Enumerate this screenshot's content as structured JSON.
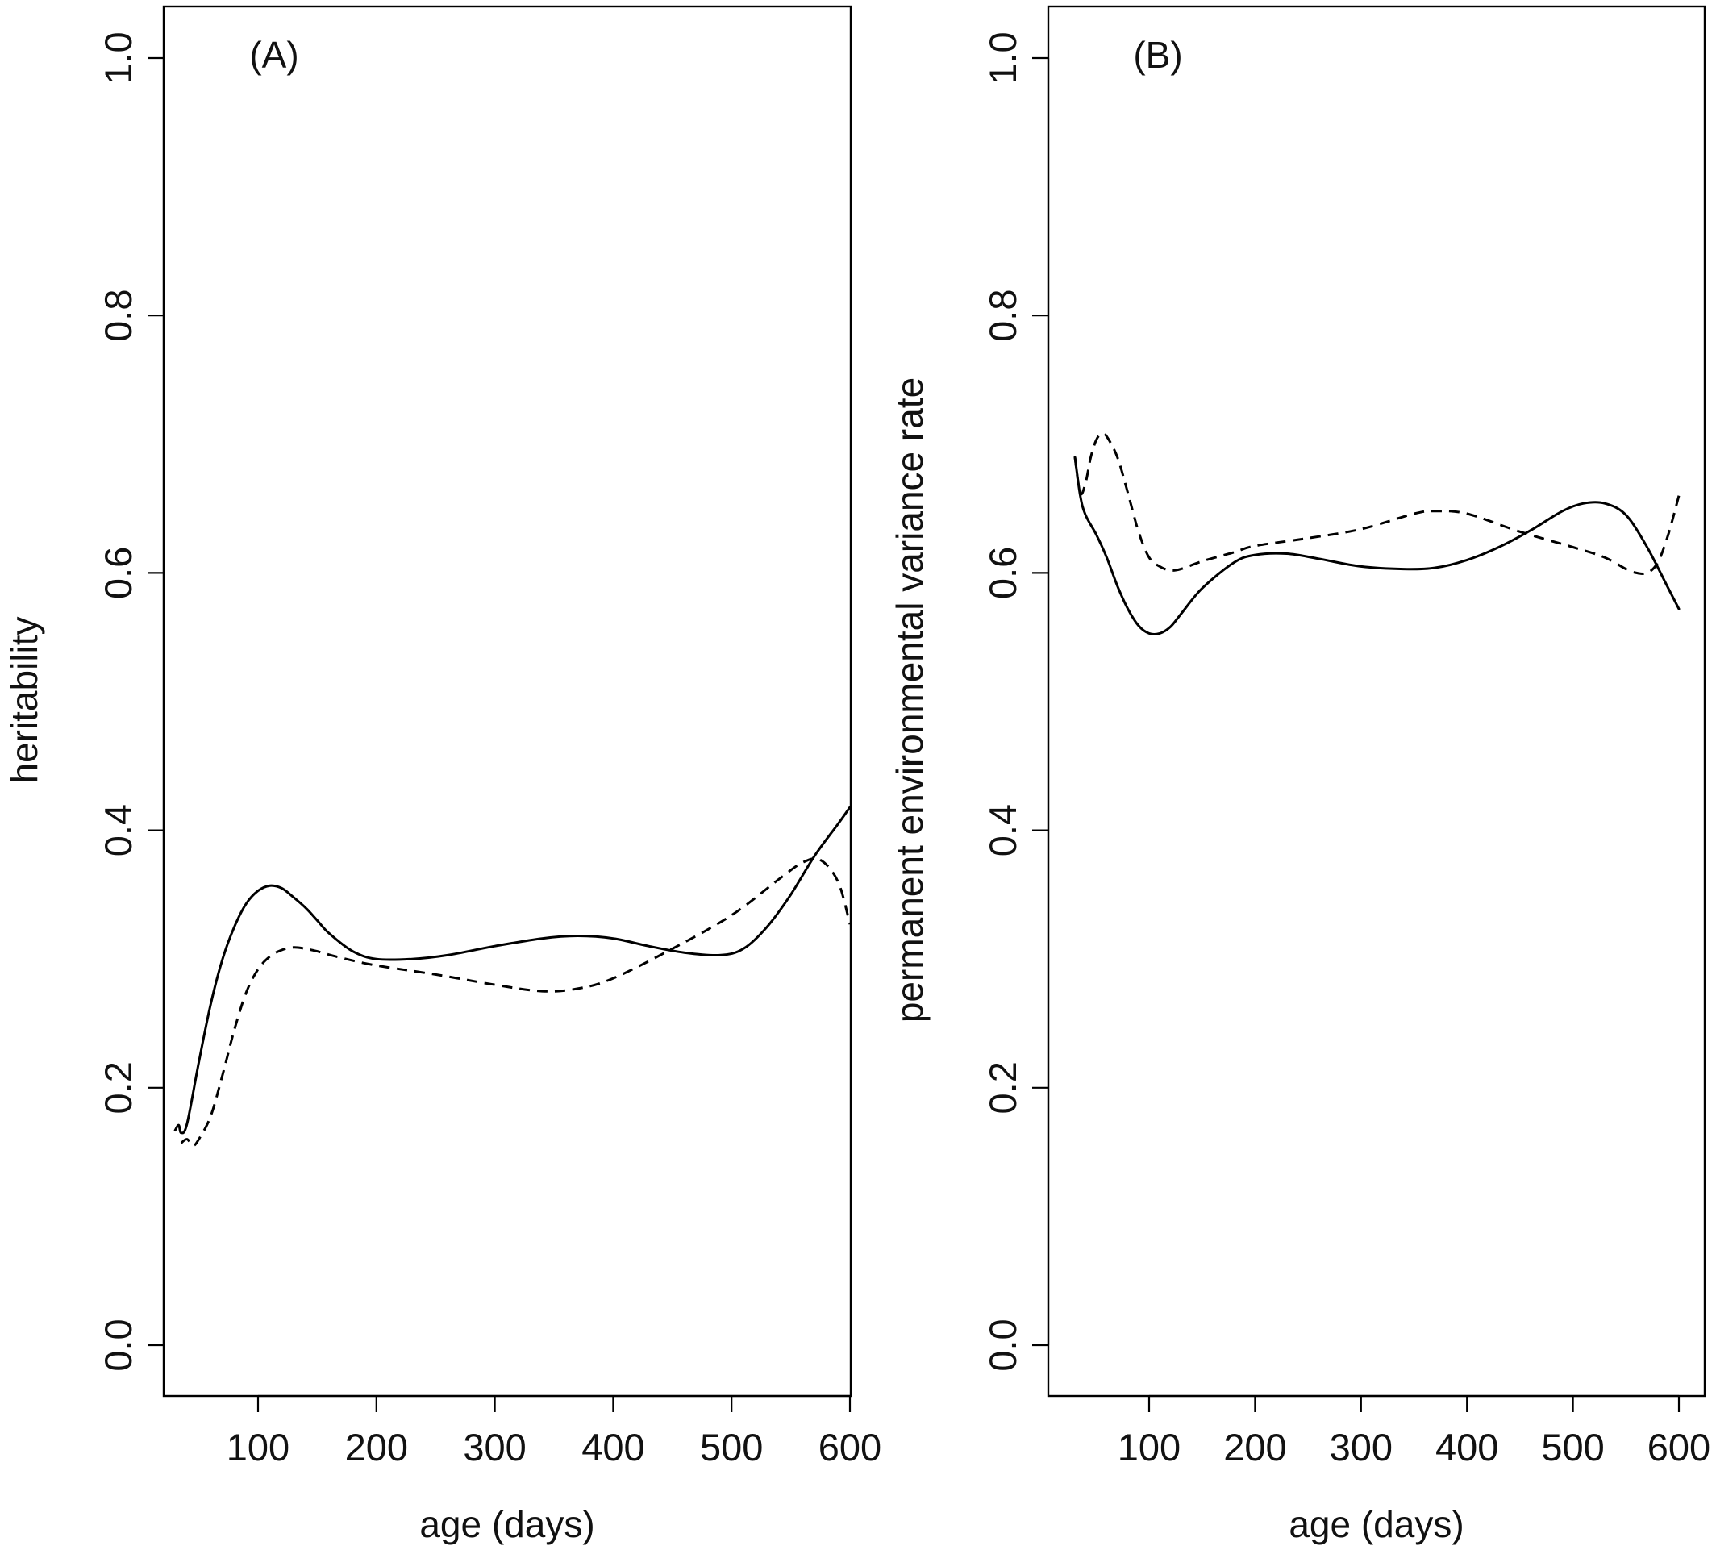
{
  "chart_data": [
    {
      "type": "line",
      "panel_label": "(A)",
      "xlabel": "age (days)",
      "ylabel": "heritability",
      "xlim": [
        30,
        600
      ],
      "ylim": [
        0.0,
        1.0
      ],
      "xticks": [
        100,
        200,
        300,
        400,
        500,
        600
      ],
      "yticks": [
        0.0,
        0.2,
        0.4,
        0.6,
        0.8,
        1.0
      ],
      "xtick_labels": [
        "100",
        "200",
        "300",
        "400",
        "500",
        "600"
      ],
      "ytick_labels": [
        "0.0",
        "0.2",
        "0.4",
        "0.6",
        "0.8",
        "1.0"
      ],
      "grid": false,
      "series": [
        {
          "style": "solid",
          "x": [
            30,
            33,
            35,
            40,
            50,
            60,
            70,
            80,
            90,
            100,
            110,
            120,
            130,
            140,
            150,
            160,
            180,
            200,
            230,
            260,
            300,
            340,
            370,
            400,
            430,
            460,
            490,
            510,
            530,
            550,
            570,
            590,
            600
          ],
          "y": [
            0.167,
            0.171,
            0.165,
            0.172,
            0.22,
            0.265,
            0.3,
            0.325,
            0.343,
            0.353,
            0.357,
            0.355,
            0.348,
            0.34,
            0.33,
            0.32,
            0.306,
            0.3,
            0.3,
            0.303,
            0.31,
            0.316,
            0.318,
            0.316,
            0.31,
            0.305,
            0.303,
            0.308,
            0.325,
            0.35,
            0.38,
            0.405,
            0.418
          ]
        },
        {
          "style": "dashed",
          "x": [
            35,
            40,
            45,
            50,
            60,
            70,
            80,
            90,
            100,
            110,
            120,
            130,
            140,
            150,
            170,
            200,
            250,
            300,
            340,
            370,
            400,
            450,
            500,
            540,
            560,
            575,
            590,
            600
          ],
          "y": [
            0.157,
            0.16,
            0.155,
            0.16,
            0.178,
            0.21,
            0.245,
            0.274,
            0.292,
            0.302,
            0.307,
            0.309,
            0.308,
            0.306,
            0.301,
            0.295,
            0.288,
            0.28,
            0.275,
            0.277,
            0.285,
            0.308,
            0.334,
            0.362,
            0.375,
            0.377,
            0.36,
            0.327
          ]
        }
      ]
    },
    {
      "type": "line",
      "panel_label": "(B)",
      "xlabel": "age (days)",
      "ylabel": "permanent environmental variance rate",
      "xlim": [
        30,
        600
      ],
      "ylim": [
        0.0,
        1.0
      ],
      "xticks": [
        100,
        200,
        300,
        400,
        500,
        600
      ],
      "yticks": [
        0.0,
        0.2,
        0.4,
        0.6,
        0.8,
        1.0
      ],
      "xtick_labels": [
        "100",
        "200",
        "300",
        "400",
        "500",
        "600"
      ],
      "ytick_labels": [
        "0.0",
        "0.2",
        "0.4",
        "0.6",
        "0.8",
        "1.0"
      ],
      "grid": false,
      "series": [
        {
          "style": "solid",
          "x": [
            30,
            35,
            40,
            50,
            60,
            70,
            80,
            90,
            100,
            110,
            120,
            130,
            150,
            180,
            200,
            230,
            260,
            300,
            340,
            370,
            400,
            430,
            460,
            490,
            510,
            530,
            550,
            570,
            590,
            600
          ],
          "y": [
            0.69,
            0.66,
            0.645,
            0.63,
            0.612,
            0.59,
            0.572,
            0.559,
            0.553,
            0.553,
            0.558,
            0.568,
            0.588,
            0.608,
            0.614,
            0.615,
            0.611,
            0.605,
            0.603,
            0.604,
            0.61,
            0.62,
            0.633,
            0.648,
            0.654,
            0.654,
            0.645,
            0.62,
            0.588,
            0.572
          ]
        },
        {
          "style": "dashed",
          "x": [
            30,
            35,
            40,
            45,
            50,
            55,
            60,
            70,
            80,
            90,
            100,
            110,
            120,
            130,
            150,
            180,
            200,
            250,
            300,
            350,
            370,
            400,
            450,
            500,
            530,
            550,
            560,
            570,
            580,
            590,
            600
          ],
          "y": [
            0.69,
            0.662,
            0.67,
            0.69,
            0.703,
            0.708,
            0.706,
            0.69,
            0.662,
            0.632,
            0.612,
            0.605,
            0.602,
            0.603,
            0.609,
            0.616,
            0.621,
            0.627,
            0.634,
            0.646,
            0.648,
            0.646,
            0.632,
            0.62,
            0.612,
            0.603,
            0.6,
            0.6,
            0.608,
            0.63,
            0.66
          ]
        }
      ]
    }
  ]
}
